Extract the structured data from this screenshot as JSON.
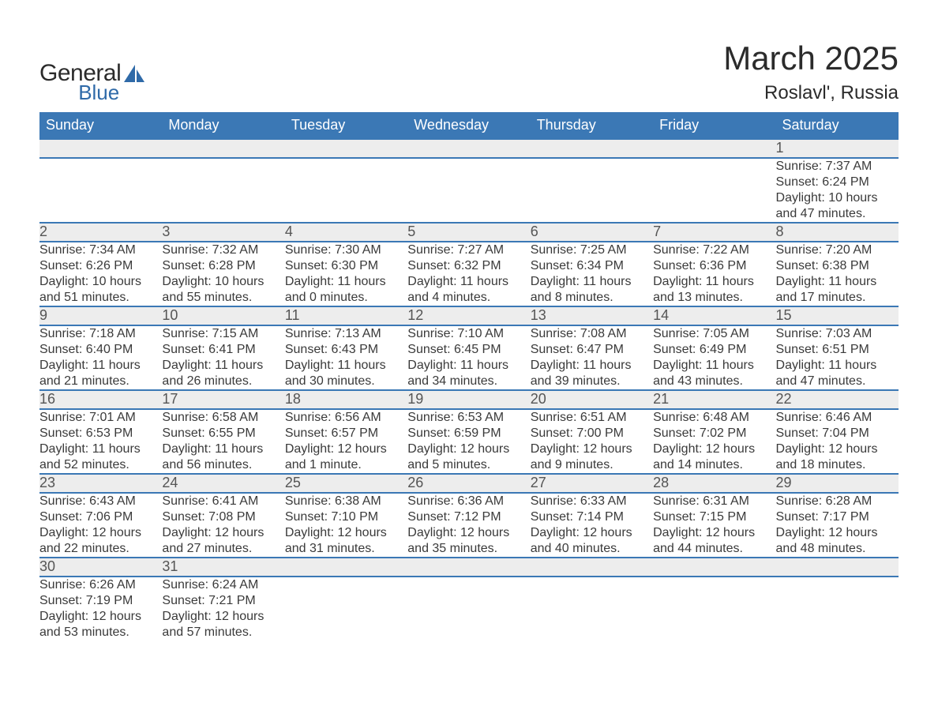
{
  "logo": {
    "word1": "General",
    "word2": "Blue",
    "icon_color": "#2f6aa8"
  },
  "title": "March 2025",
  "location": "Roslavl', Russia",
  "colors": {
    "header_bg": "#3b78b5",
    "header_text": "#ffffff",
    "daynum_bg": "#ededed",
    "rule": "#3b78b5",
    "body_text": "#3a3a3a"
  },
  "day_headers": [
    "Sunday",
    "Monday",
    "Tuesday",
    "Wednesday",
    "Thursday",
    "Friday",
    "Saturday"
  ],
  "weeks": [
    [
      null,
      null,
      null,
      null,
      null,
      null,
      {
        "n": "1",
        "sr": "Sunrise: 7:37 AM",
        "ss": "Sunset: 6:24 PM",
        "dl": "Daylight: 10 hours and 47 minutes."
      }
    ],
    [
      {
        "n": "2",
        "sr": "Sunrise: 7:34 AM",
        "ss": "Sunset: 6:26 PM",
        "dl": "Daylight: 10 hours and 51 minutes."
      },
      {
        "n": "3",
        "sr": "Sunrise: 7:32 AM",
        "ss": "Sunset: 6:28 PM",
        "dl": "Daylight: 10 hours and 55 minutes."
      },
      {
        "n": "4",
        "sr": "Sunrise: 7:30 AM",
        "ss": "Sunset: 6:30 PM",
        "dl": "Daylight: 11 hours and 0 minutes."
      },
      {
        "n": "5",
        "sr": "Sunrise: 7:27 AM",
        "ss": "Sunset: 6:32 PM",
        "dl": "Daylight: 11 hours and 4 minutes."
      },
      {
        "n": "6",
        "sr": "Sunrise: 7:25 AM",
        "ss": "Sunset: 6:34 PM",
        "dl": "Daylight: 11 hours and 8 minutes."
      },
      {
        "n": "7",
        "sr": "Sunrise: 7:22 AM",
        "ss": "Sunset: 6:36 PM",
        "dl": "Daylight: 11 hours and 13 minutes."
      },
      {
        "n": "8",
        "sr": "Sunrise: 7:20 AM",
        "ss": "Sunset: 6:38 PM",
        "dl": "Daylight: 11 hours and 17 minutes."
      }
    ],
    [
      {
        "n": "9",
        "sr": "Sunrise: 7:18 AM",
        "ss": "Sunset: 6:40 PM",
        "dl": "Daylight: 11 hours and 21 minutes."
      },
      {
        "n": "10",
        "sr": "Sunrise: 7:15 AM",
        "ss": "Sunset: 6:41 PM",
        "dl": "Daylight: 11 hours and 26 minutes."
      },
      {
        "n": "11",
        "sr": "Sunrise: 7:13 AM",
        "ss": "Sunset: 6:43 PM",
        "dl": "Daylight: 11 hours and 30 minutes."
      },
      {
        "n": "12",
        "sr": "Sunrise: 7:10 AM",
        "ss": "Sunset: 6:45 PM",
        "dl": "Daylight: 11 hours and 34 minutes."
      },
      {
        "n": "13",
        "sr": "Sunrise: 7:08 AM",
        "ss": "Sunset: 6:47 PM",
        "dl": "Daylight: 11 hours and 39 minutes."
      },
      {
        "n": "14",
        "sr": "Sunrise: 7:05 AM",
        "ss": "Sunset: 6:49 PM",
        "dl": "Daylight: 11 hours and 43 minutes."
      },
      {
        "n": "15",
        "sr": "Sunrise: 7:03 AM",
        "ss": "Sunset: 6:51 PM",
        "dl": "Daylight: 11 hours and 47 minutes."
      }
    ],
    [
      {
        "n": "16",
        "sr": "Sunrise: 7:01 AM",
        "ss": "Sunset: 6:53 PM",
        "dl": "Daylight: 11 hours and 52 minutes."
      },
      {
        "n": "17",
        "sr": "Sunrise: 6:58 AM",
        "ss": "Sunset: 6:55 PM",
        "dl": "Daylight: 11 hours and 56 minutes."
      },
      {
        "n": "18",
        "sr": "Sunrise: 6:56 AM",
        "ss": "Sunset: 6:57 PM",
        "dl": "Daylight: 12 hours and 1 minute."
      },
      {
        "n": "19",
        "sr": "Sunrise: 6:53 AM",
        "ss": "Sunset: 6:59 PM",
        "dl": "Daylight: 12 hours and 5 minutes."
      },
      {
        "n": "20",
        "sr": "Sunrise: 6:51 AM",
        "ss": "Sunset: 7:00 PM",
        "dl": "Daylight: 12 hours and 9 minutes."
      },
      {
        "n": "21",
        "sr": "Sunrise: 6:48 AM",
        "ss": "Sunset: 7:02 PM",
        "dl": "Daylight: 12 hours and 14 minutes."
      },
      {
        "n": "22",
        "sr": "Sunrise: 6:46 AM",
        "ss": "Sunset: 7:04 PM",
        "dl": "Daylight: 12 hours and 18 minutes."
      }
    ],
    [
      {
        "n": "23",
        "sr": "Sunrise: 6:43 AM",
        "ss": "Sunset: 7:06 PM",
        "dl": "Daylight: 12 hours and 22 minutes."
      },
      {
        "n": "24",
        "sr": "Sunrise: 6:41 AM",
        "ss": "Sunset: 7:08 PM",
        "dl": "Daylight: 12 hours and 27 minutes."
      },
      {
        "n": "25",
        "sr": "Sunrise: 6:38 AM",
        "ss": "Sunset: 7:10 PM",
        "dl": "Daylight: 12 hours and 31 minutes."
      },
      {
        "n": "26",
        "sr": "Sunrise: 6:36 AM",
        "ss": "Sunset: 7:12 PM",
        "dl": "Daylight: 12 hours and 35 minutes."
      },
      {
        "n": "27",
        "sr": "Sunrise: 6:33 AM",
        "ss": "Sunset: 7:14 PM",
        "dl": "Daylight: 12 hours and 40 minutes."
      },
      {
        "n": "28",
        "sr": "Sunrise: 6:31 AM",
        "ss": "Sunset: 7:15 PM",
        "dl": "Daylight: 12 hours and 44 minutes."
      },
      {
        "n": "29",
        "sr": "Sunrise: 6:28 AM",
        "ss": "Sunset: 7:17 PM",
        "dl": "Daylight: 12 hours and 48 minutes."
      }
    ],
    [
      {
        "n": "30",
        "sr": "Sunrise: 6:26 AM",
        "ss": "Sunset: 7:19 PM",
        "dl": "Daylight: 12 hours and 53 minutes."
      },
      {
        "n": "31",
        "sr": "Sunrise: 6:24 AM",
        "ss": "Sunset: 7:21 PM",
        "dl": "Daylight: 12 hours and 57 minutes."
      },
      null,
      null,
      null,
      null,
      null
    ]
  ]
}
